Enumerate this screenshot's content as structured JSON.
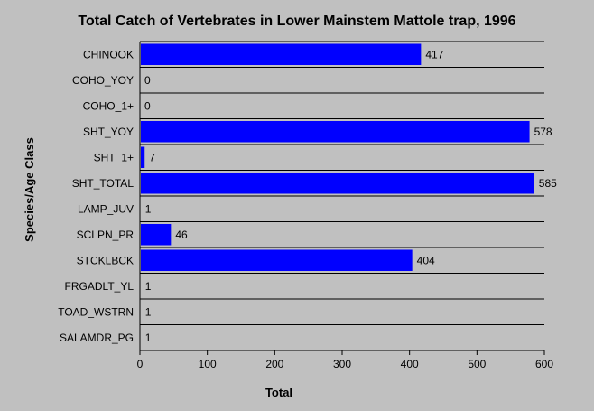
{
  "chart_data": {
    "type": "bar",
    "orientation": "horizontal",
    "title": "Total Catch of Vertebrates in Lower Mainstem Mattole trap, 1996",
    "xlabel": "Total",
    "ylabel": "Species/Age Class",
    "categories": [
      "CHINOOK",
      "COHO_YOY",
      "COHO_1+",
      "SHT_YOY",
      "SHT_1+",
      "SHT_TOTAL",
      "LAMP_JUV",
      "SCLPN_PR",
      "STCKLBCK",
      "FRGADLT_YL",
      "TOAD_WSTRN",
      "SALAMDR_PG"
    ],
    "values": [
      417,
      0,
      0,
      578,
      7,
      585,
      1,
      46,
      404,
      1,
      1,
      1
    ],
    "xlim": [
      0,
      600
    ],
    "xticks": [
      0,
      100,
      200,
      300,
      400,
      500,
      600
    ],
    "grid": "horizontal lines between categories",
    "colors": {
      "bar": "#0000ff",
      "background": "#c0c0c0",
      "plot": "#c0c0c0"
    }
  }
}
